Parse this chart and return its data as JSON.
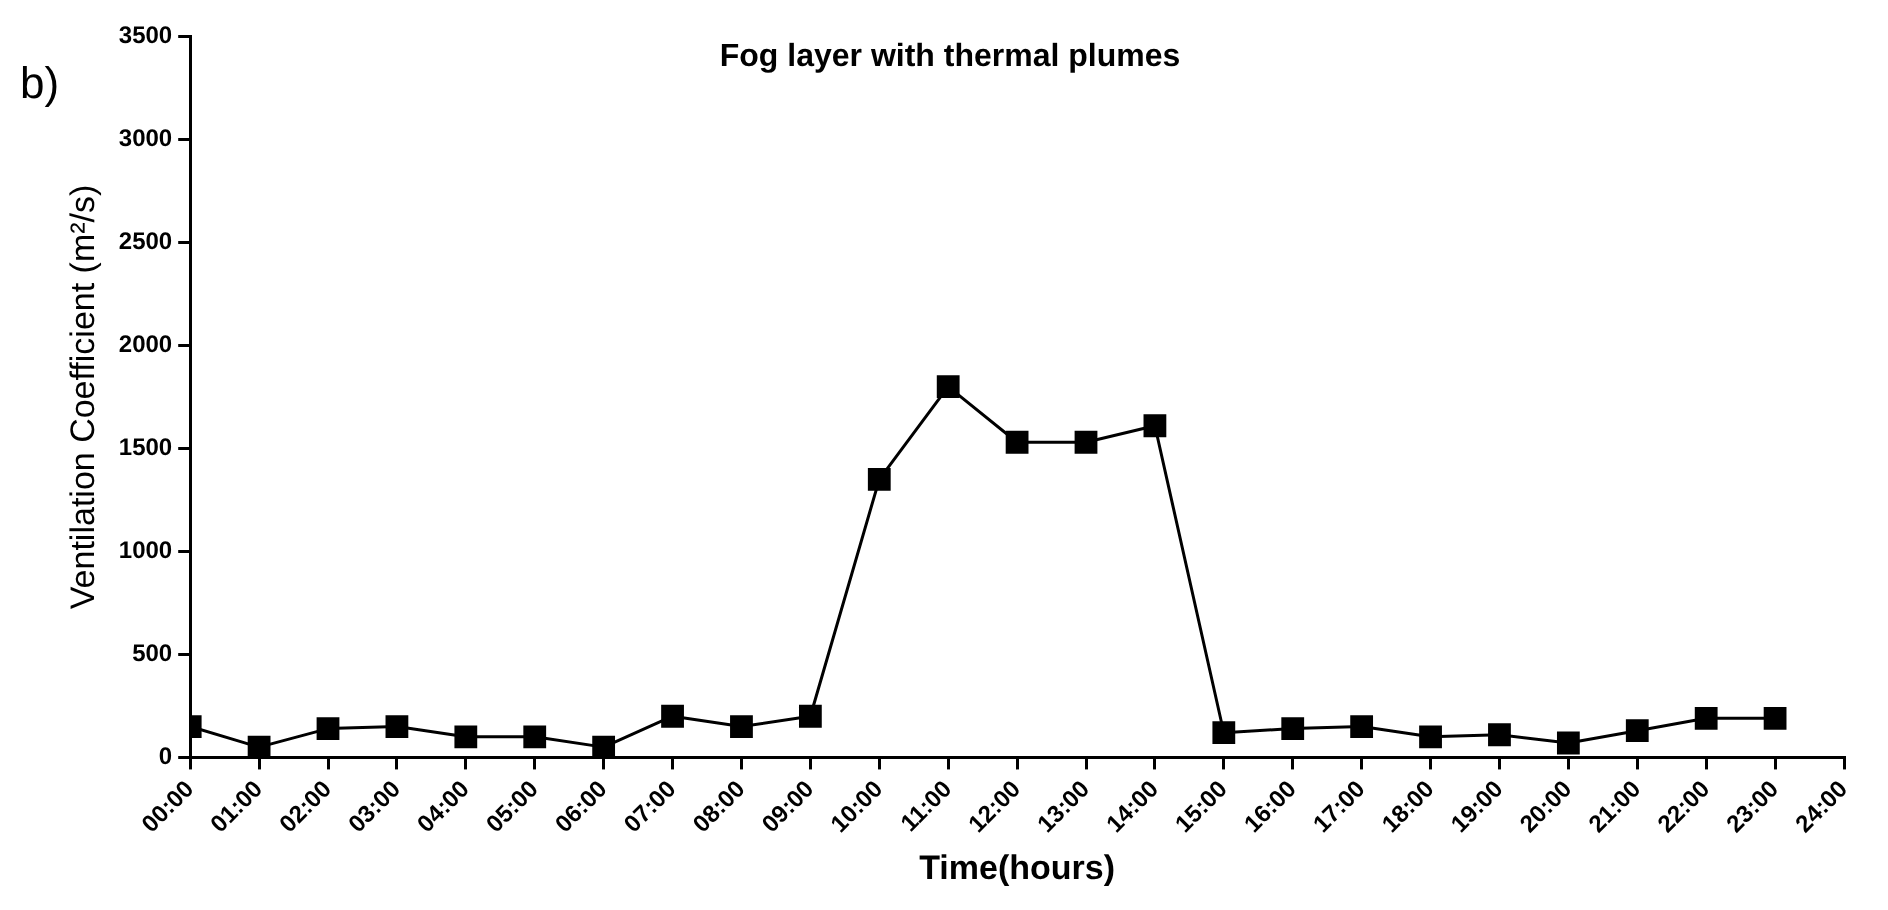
{
  "chart_data": {
    "type": "line",
    "title": "Fog layer with thermal plumes",
    "xlabel": "Time(hours)",
    "ylabel": "Ventilation Coefficient (m²/s)",
    "annotations": [
      "b)"
    ],
    "x": [
      0,
      1,
      2,
      3,
      4,
      5,
      6,
      7,
      8,
      9,
      10,
      11,
      12,
      13,
      14,
      15,
      16,
      17,
      18,
      19,
      20,
      21,
      22,
      23
    ],
    "series": [
      {
        "color": "#000000",
        "values": [
          150,
          50,
          140,
          150,
          100,
          100,
          50,
          200,
          150,
          200,
          1350,
          1800,
          1530,
          1530,
          1610,
          120,
          140,
          150,
          100,
          110,
          70,
          130,
          190,
          190
        ]
      }
    ],
    "xlim": [
      0,
      24
    ],
    "xticks": [
      {
        "value": 0,
        "label": "00:00"
      },
      {
        "value": 1,
        "label": "01:00"
      },
      {
        "value": 2,
        "label": "02:00"
      },
      {
        "value": 3,
        "label": "03:00"
      },
      {
        "value": 4,
        "label": "04:00"
      },
      {
        "value": 5,
        "label": "05:00"
      },
      {
        "value": 6,
        "label": "06:00"
      },
      {
        "value": 7,
        "label": "07:00"
      },
      {
        "value": 8,
        "label": "08:00"
      },
      {
        "value": 9,
        "label": "09:00"
      },
      {
        "value": 10,
        "label": "10:00"
      },
      {
        "value": 11,
        "label": "11:00"
      },
      {
        "value": 12,
        "label": "12:00"
      },
      {
        "value": 13,
        "label": "13:00"
      },
      {
        "value": 14,
        "label": "14:00"
      },
      {
        "value": 15,
        "label": "15:00"
      },
      {
        "value": 16,
        "label": "16:00"
      },
      {
        "value": 17,
        "label": "17:00"
      },
      {
        "value": 18,
        "label": "18:00"
      },
      {
        "value": 19,
        "label": "19:00"
      },
      {
        "value": 20,
        "label": "20:00"
      },
      {
        "value": 21,
        "label": "21:00"
      },
      {
        "value": 22,
        "label": "22:00"
      },
      {
        "value": 23,
        "label": "23:00"
      },
      {
        "value": 24,
        "label": "24:00"
      }
    ],
    "ylim": [
      0,
      3500
    ],
    "yticks": [
      0,
      500,
      1000,
      1500,
      2000,
      2500,
      3000,
      3500
    ],
    "marker": "square",
    "line_style": "solid",
    "grid": false,
    "legend": false
  }
}
